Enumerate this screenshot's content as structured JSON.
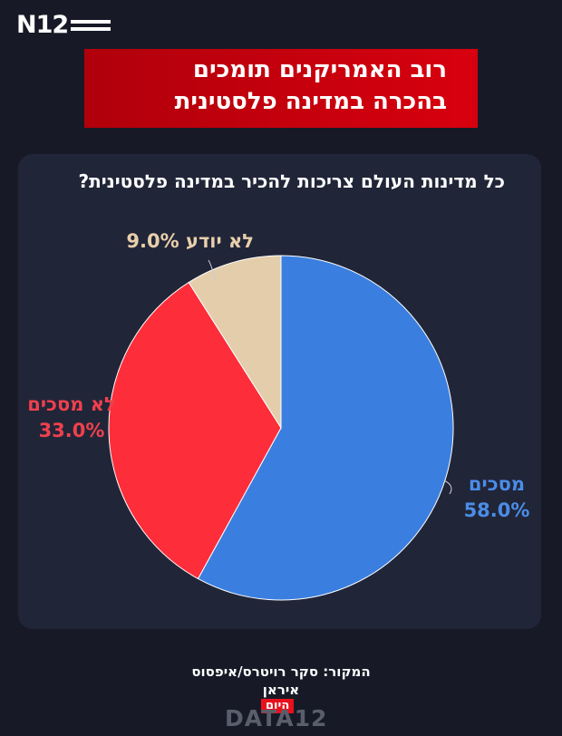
{
  "brand": {
    "logo_text": "N12",
    "footer_logo": "DATA12",
    "credit_name": "איראן",
    "credit_badge": "היום"
  },
  "headline": {
    "line1": "רוב האמריקנים תומכים",
    "line2": "בהכרה במדינה פלסטינית"
  },
  "footer": {
    "source": "המקור: סקר רויטרס/איפסוס"
  },
  "chart_data": {
    "type": "pie",
    "title": "כל מדינות העולם צריכות להכיר במדינה פלסטינית?",
    "slices": [
      {
        "label": "מסכים",
        "value": 58.0,
        "display": "58.0%",
        "color": "#3a7fdf"
      },
      {
        "label": "לא מסכים",
        "value": 33.0,
        "display": "33.0%",
        "color": "#fd2d3a"
      },
      {
        "label": "לא יודע",
        "value": 9.0,
        "display": "9.0%",
        "color": "#e4cdaa"
      }
    ]
  }
}
